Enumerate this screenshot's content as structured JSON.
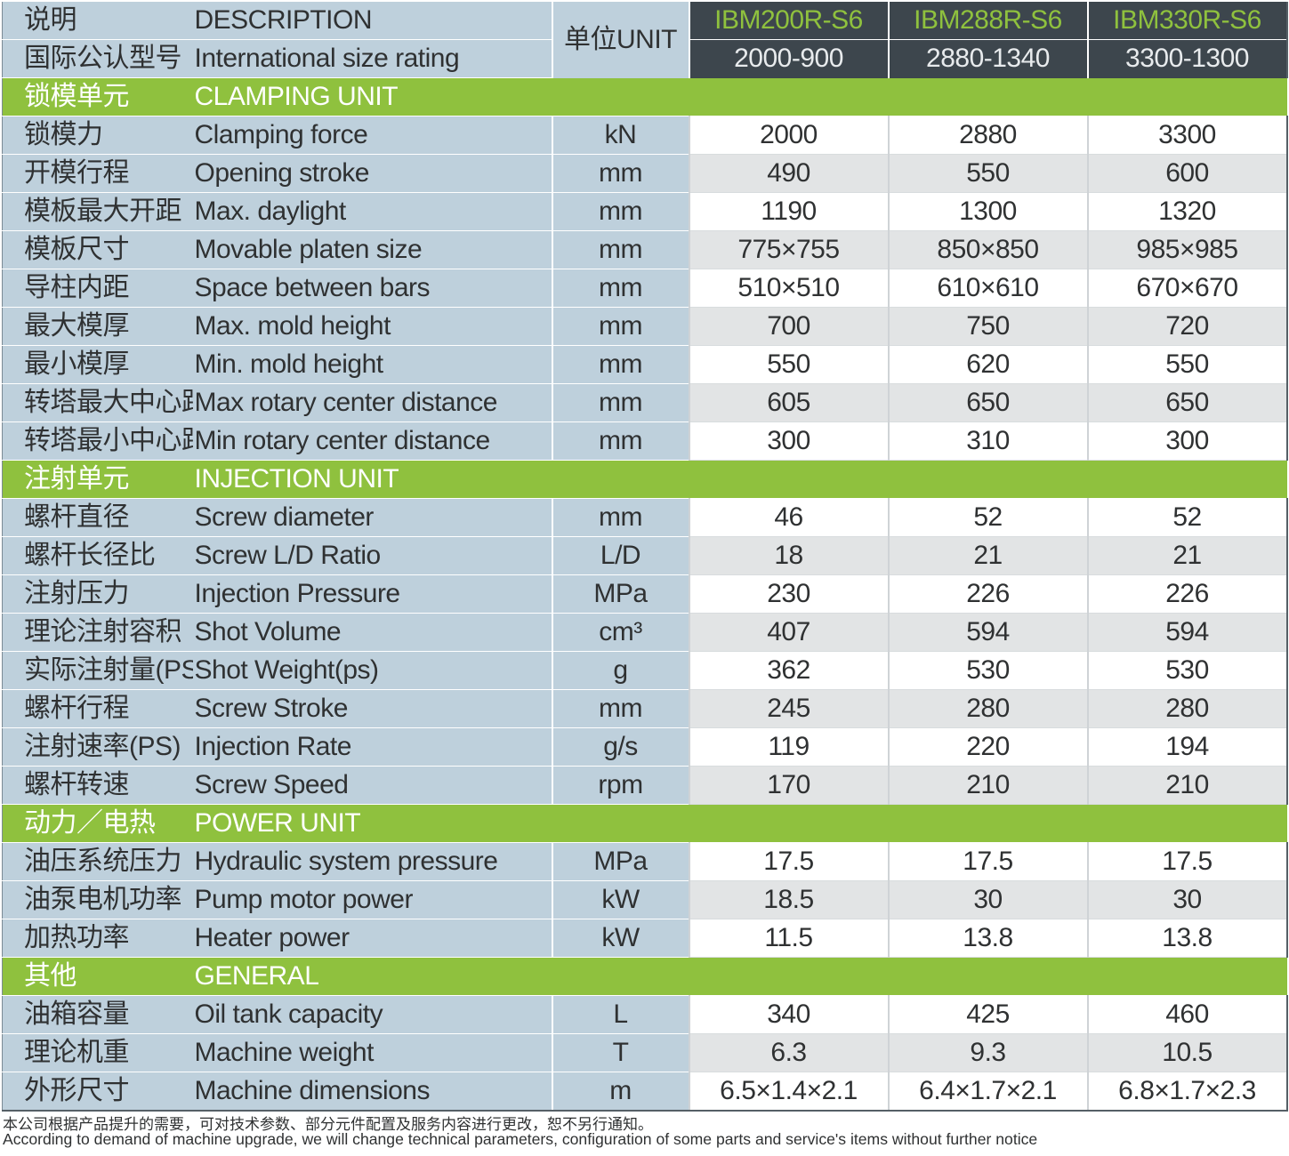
{
  "header": {
    "desc_cn": "说明",
    "desc_en": "DESCRIPTION",
    "rating_cn": "国际公认型号",
    "rating_en": "International size rating",
    "unit_label": "单位UNIT",
    "models": [
      "IBM200R-S6",
      "IBM288R-S6",
      "IBM330R-S6"
    ],
    "ratings": [
      "2000-900",
      "2880-1340",
      "3300-1300"
    ]
  },
  "sections": [
    {
      "cn": "锁模单元",
      "en": "CLAMPING UNIT",
      "rows": [
        {
          "cn": "锁模力",
          "en": "Clamping force",
          "unit": "kN",
          "values": [
            "2000",
            "2880",
            "3300"
          ]
        },
        {
          "cn": "开模行程",
          "en": "Opening stroke",
          "unit": "mm",
          "values": [
            "490",
            "550",
            "600"
          ]
        },
        {
          "cn": "模板最大开距",
          "en": "Max. daylight",
          "unit": "mm",
          "values": [
            "1190",
            "1300",
            "1320"
          ]
        },
        {
          "cn": "模板尺寸",
          "en": "Movable platen size",
          "unit": "mm",
          "values": [
            "775×755",
            "850×850",
            "985×985"
          ]
        },
        {
          "cn": "导柱内距",
          "en": "Space between bars",
          "unit": "mm",
          "values": [
            "510×510",
            "610×610",
            "670×670"
          ]
        },
        {
          "cn": "最大模厚",
          "en": "Max. mold height",
          "unit": "mm",
          "values": [
            "700",
            "750",
            "720"
          ]
        },
        {
          "cn": "最小模厚",
          "en": "Min. mold height",
          "unit": "mm",
          "values": [
            "550",
            "620",
            "550"
          ]
        },
        {
          "cn": "转塔最大中心距",
          "en": "Max rotary center distance",
          "unit": "mm",
          "values": [
            "605",
            "650",
            "650"
          ]
        },
        {
          "cn": "转塔最小中心距",
          "en": "Min rotary center distance",
          "unit": "mm",
          "values": [
            "300",
            "310",
            "300"
          ]
        }
      ]
    },
    {
      "cn": "注射单元",
      "en": "INJECTION UNIT",
      "rows": [
        {
          "cn": "螺杆直径",
          "en": "Screw diameter",
          "unit": "mm",
          "values": [
            "46",
            "52",
            "52"
          ]
        },
        {
          "cn": "螺杆长径比",
          "en": "Screw L/D Ratio",
          "unit": "L/D",
          "values": [
            "18",
            "21",
            "21"
          ]
        },
        {
          "cn": "注射压力",
          "en": "Injection Pressure",
          "unit": "MPa",
          "values": [
            "230",
            "226",
            "226"
          ]
        },
        {
          "cn": "理论注射容积",
          "en": "Shot Volume",
          "unit": "cm³",
          "values": [
            "407",
            "594",
            "594"
          ]
        },
        {
          "cn": "实际注射量(PS)",
          "en": "Shot Weight(ps)",
          "unit": "g",
          "values": [
            "362",
            "530",
            "530"
          ]
        },
        {
          "cn": "螺杆行程",
          "en": "Screw Stroke",
          "unit": "mm",
          "values": [
            "245",
            "280",
            "280"
          ]
        },
        {
          "cn": "注射速率(PS)",
          "en": "Injection Rate",
          "unit": "g/s",
          "values": [
            "119",
            "220",
            "194"
          ]
        },
        {
          "cn": "螺杆转速",
          "en": "Screw Speed",
          "unit": "rpm",
          "values": [
            "170",
            "210",
            "210"
          ]
        }
      ]
    },
    {
      "cn": "动力／电热",
      "en": "POWER UNIT",
      "rows": [
        {
          "cn": "油压系统压力",
          "en": "Hydraulic system pressure",
          "unit": "MPa",
          "values": [
            "17.5",
            "17.5",
            "17.5"
          ]
        },
        {
          "cn": "油泵电机功率",
          "en": "Pump motor power",
          "unit": "kW",
          "values": [
            "18.5",
            "30",
            "30"
          ]
        },
        {
          "cn": "加热功率",
          "en": "Heater power",
          "unit": "kW",
          "values": [
            "11.5",
            "13.8",
            "13.8"
          ]
        }
      ]
    },
    {
      "cn": "其他",
      "en": "GENERAL",
      "rows": [
        {
          "cn": "油箱容量",
          "en": "Oil tank capacity",
          "unit": "L",
          "values": [
            "340",
            "425",
            "460"
          ]
        },
        {
          "cn": "理论机重",
          "en": "Machine weight",
          "unit": "T",
          "values": [
            "6.3",
            "9.3",
            "10.5"
          ]
        },
        {
          "cn": "外形尺寸",
          "en": "Machine dimensions",
          "unit": "m",
          "values": [
            "6.5×1.4×2.1",
            "6.4×1.7×2.1",
            "6.8×1.7×2.3"
          ]
        }
      ]
    }
  ],
  "footnote": {
    "cn": "本公司根据产品提升的需要，可对技术参数、部分元件配置及服务内容进行更改，恕不另行通知。",
    "en": "According to demand of machine upgrade, we will change technical parameters, configuration of some parts and service's items without further notice"
  },
  "colors": {
    "section_green": "#8fc13e",
    "header_dark": "#3d464d",
    "label_blue": "#bed0dc",
    "row_grey": "#e2e4e5"
  }
}
